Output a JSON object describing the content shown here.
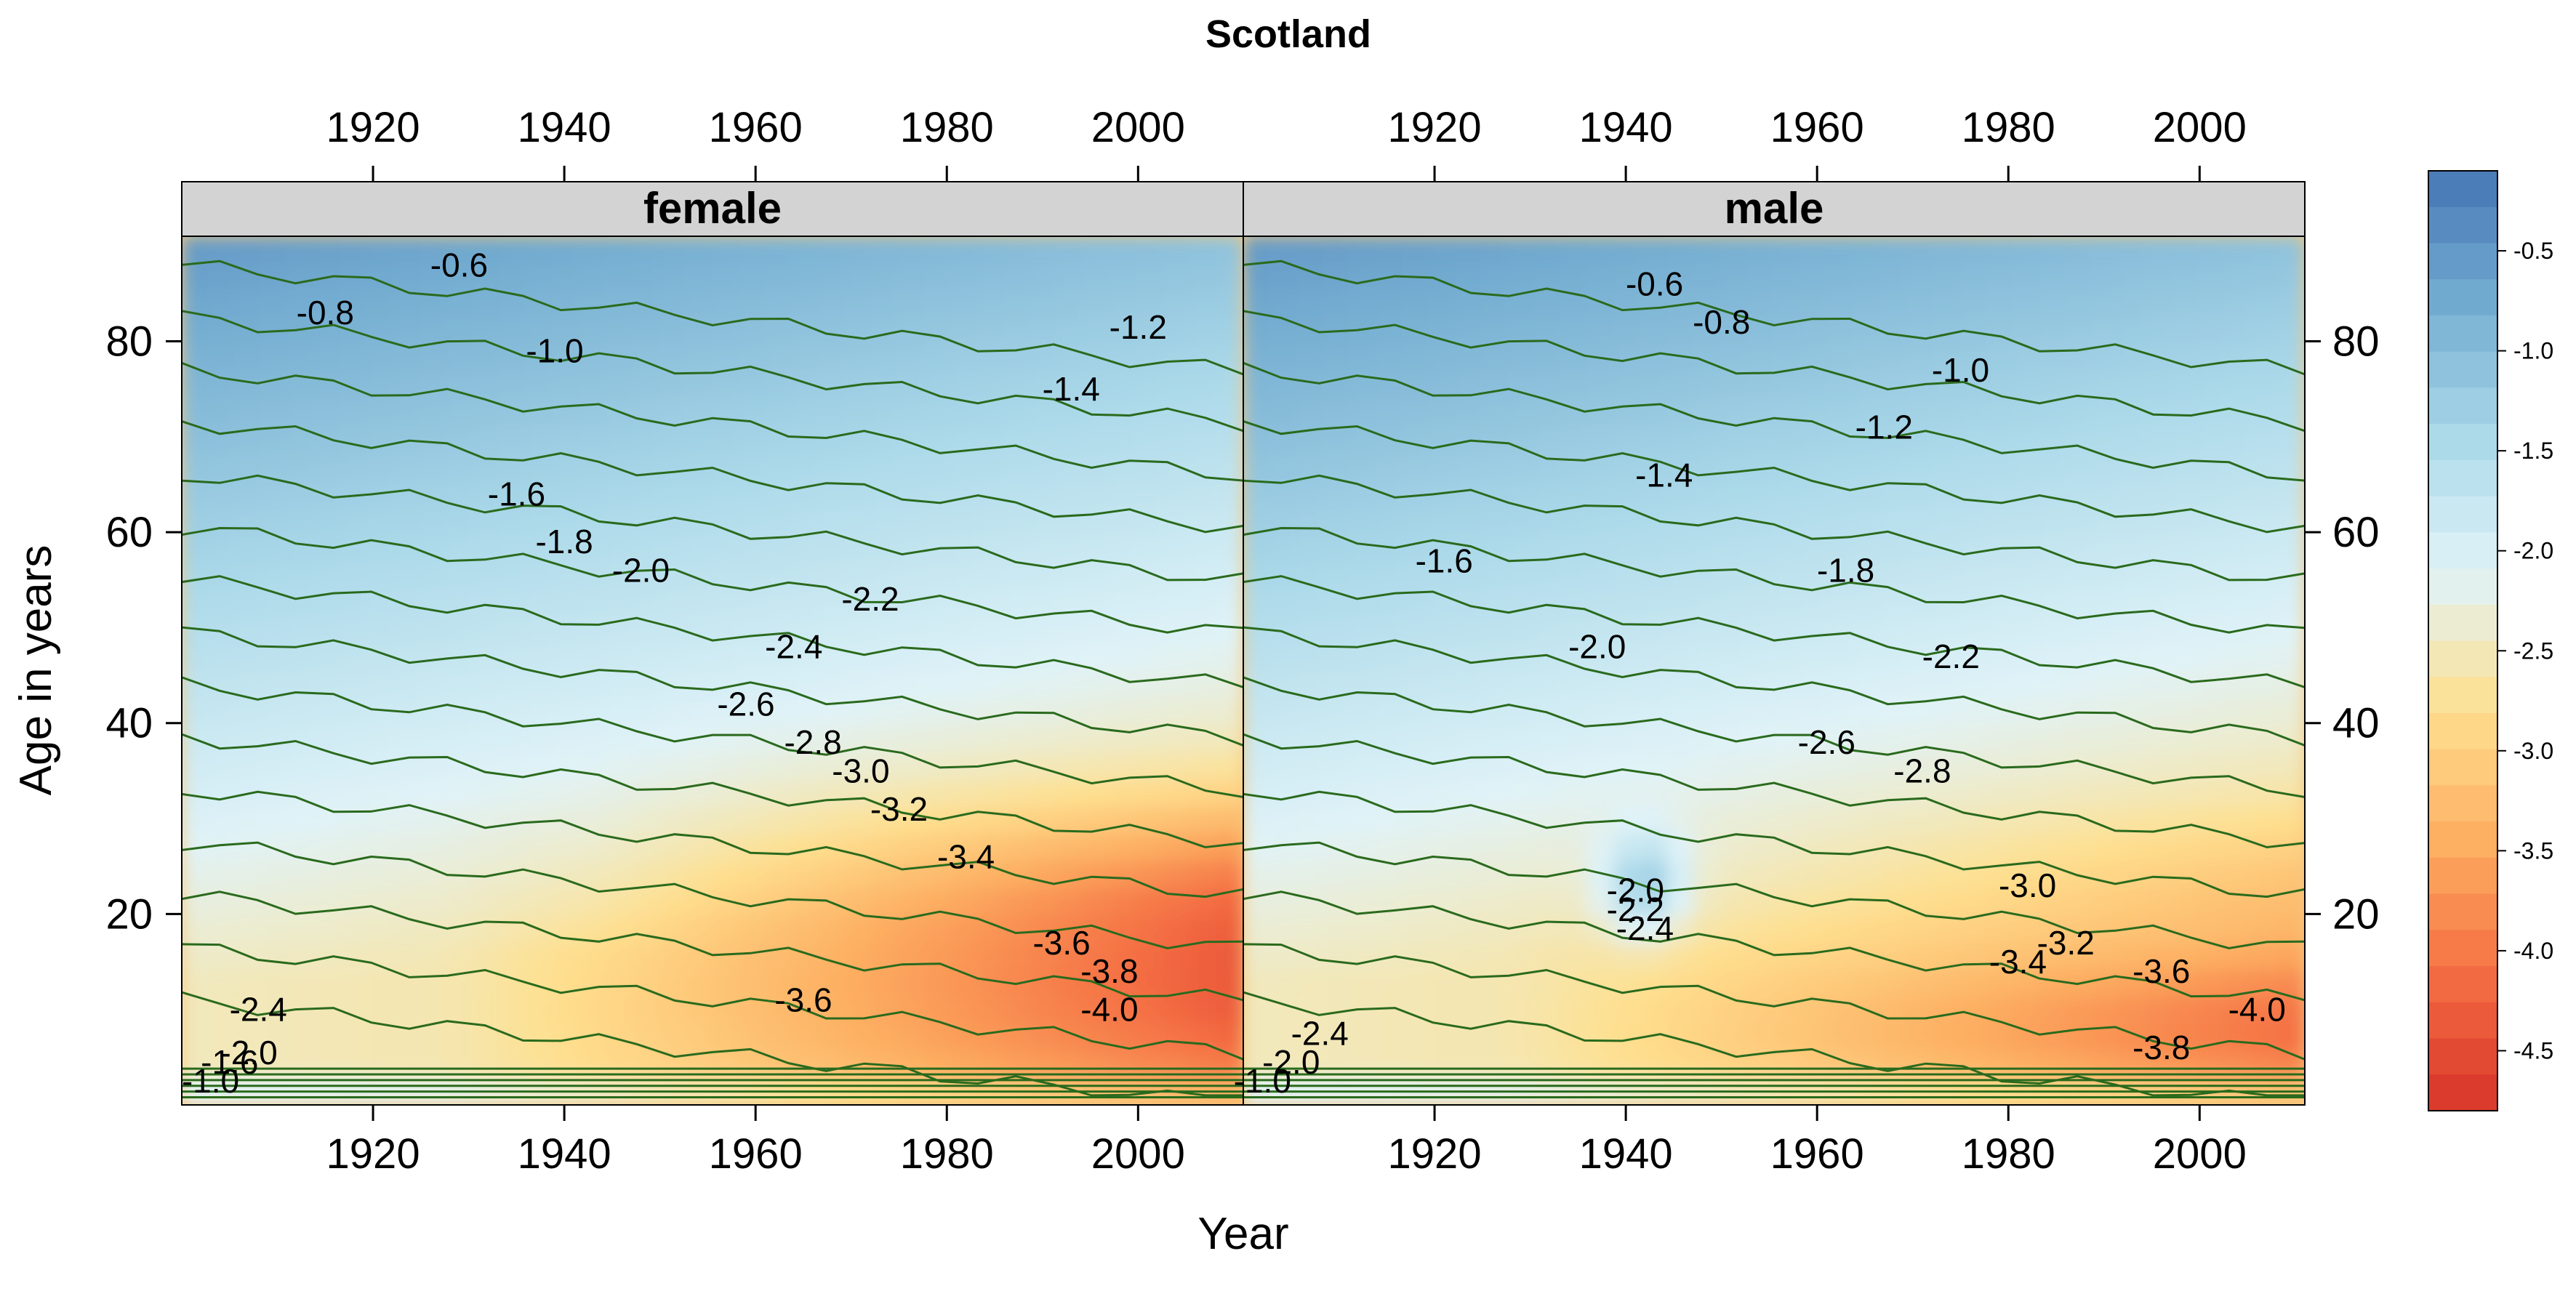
{
  "chart_data": {
    "type": "heatmap",
    "title": "Scotland",
    "xlabel": "Year",
    "ylabel": "Age in years",
    "xlim": [
      1900,
      2011
    ],
    "ylim": [
      0,
      91
    ],
    "x_ticks": [
      "1920",
      "1940",
      "1960",
      "1980",
      "2000"
    ],
    "y_ticks": [
      "20",
      "40",
      "60",
      "80"
    ],
    "panels": [
      {
        "name": "female",
        "contour_labels": [
          {
            "value": "-0.6",
            "x": 1929,
            "y": 88
          },
          {
            "value": "-0.8",
            "x": 1915,
            "y": 83
          },
          {
            "value": "-1.0",
            "x": 1939,
            "y": 79
          },
          {
            "value": "-1.2",
            "x": 2000,
            "y": 81.5
          },
          {
            "value": "-1.4",
            "x": 1993,
            "y": 75
          },
          {
            "value": "-1.6",
            "x": 1935,
            "y": 64
          },
          {
            "value": "-1.8",
            "x": 1940,
            "y": 59
          },
          {
            "value": "-2.0",
            "x": 1948,
            "y": 56
          },
          {
            "value": "-2.2",
            "x": 1972,
            "y": 53
          },
          {
            "value": "-2.4",
            "x": 1964,
            "y": 48
          },
          {
            "value": "-2.6",
            "x": 1959,
            "y": 42
          },
          {
            "value": "-2.8",
            "x": 1966,
            "y": 38
          },
          {
            "value": "-3.0",
            "x": 1971,
            "y": 35
          },
          {
            "value": "-3.2",
            "x": 1975,
            "y": 31
          },
          {
            "value": "-3.4",
            "x": 1982,
            "y": 26
          },
          {
            "value": "-3.6",
            "x": 1965,
            "y": 11
          },
          {
            "value": "-3.6",
            "x": 1992,
            "y": 17
          },
          {
            "value": "-3.8",
            "x": 1997,
            "y": 14
          },
          {
            "value": "-4.0",
            "x": 1997,
            "y": 10
          },
          {
            "value": "-2.4",
            "x": 1908,
            "y": 10
          },
          {
            "value": "-1.0",
            "x": 1903,
            "y": 2.5
          },
          {
            "value": "-1.6",
            "x": 1905,
            "y": 4.5
          },
          {
            "value": "-2.0",
            "x": 1907,
            "y": 5.5
          }
        ]
      },
      {
        "name": "male",
        "contour_labels": [
          {
            "value": "-0.6",
            "x": 1943,
            "y": 86
          },
          {
            "value": "-0.8",
            "x": 1950,
            "y": 82
          },
          {
            "value": "-1.0",
            "x": 1975,
            "y": 77
          },
          {
            "value": "-1.2",
            "x": 1967,
            "y": 71
          },
          {
            "value": "-1.4",
            "x": 1944,
            "y": 66
          },
          {
            "value": "-1.6",
            "x": 1921,
            "y": 57
          },
          {
            "value": "-1.8",
            "x": 1963,
            "y": 56
          },
          {
            "value": "-2.0",
            "x": 1937,
            "y": 48
          },
          {
            "value": "-2.2",
            "x": 1974,
            "y": 47
          },
          {
            "value": "-2.6",
            "x": 1961,
            "y": 38
          },
          {
            "value": "-2.8",
            "x": 1971,
            "y": 35
          },
          {
            "value": "-3.0",
            "x": 1982,
            "y": 23
          },
          {
            "value": "-3.2",
            "x": 1986,
            "y": 17
          },
          {
            "value": "-3.4",
            "x": 1981,
            "y": 15
          },
          {
            "value": "-3.6",
            "x": 1996,
            "y": 14
          },
          {
            "value": "-3.8",
            "x": 1996,
            "y": 6
          },
          {
            "value": "-4.0",
            "x": 2006,
            "y": 10
          },
          {
            "value": "-2.0",
            "x": 1941,
            "y": 22.5
          },
          {
            "value": "-2.2",
            "x": 1941,
            "y": 20.5
          },
          {
            "value": "-2.4",
            "x": 1942,
            "y": 18.5
          },
          {
            "value": "-2.4",
            "x": 1908,
            "y": 7.5
          },
          {
            "value": "-1.0",
            "x": 1902,
            "y": 2.5
          },
          {
            "value": "-2.0",
            "x": 1905,
            "y": 4.5
          }
        ]
      }
    ],
    "colorbar": {
      "ticks": [
        "-0.5",
        "-1.0",
        "-1.5",
        "-2.0",
        "-2.5",
        "-3.0",
        "-3.5",
        "-4.0",
        "-4.5"
      ],
      "range": [
        -4.8,
        -0.1
      ],
      "colors": [
        "#d7332a",
        "#f46d43",
        "#fdae61",
        "#fee090",
        "#e0f3f8",
        "#abd9e9",
        "#74add1",
        "#4575b4"
      ]
    }
  }
}
